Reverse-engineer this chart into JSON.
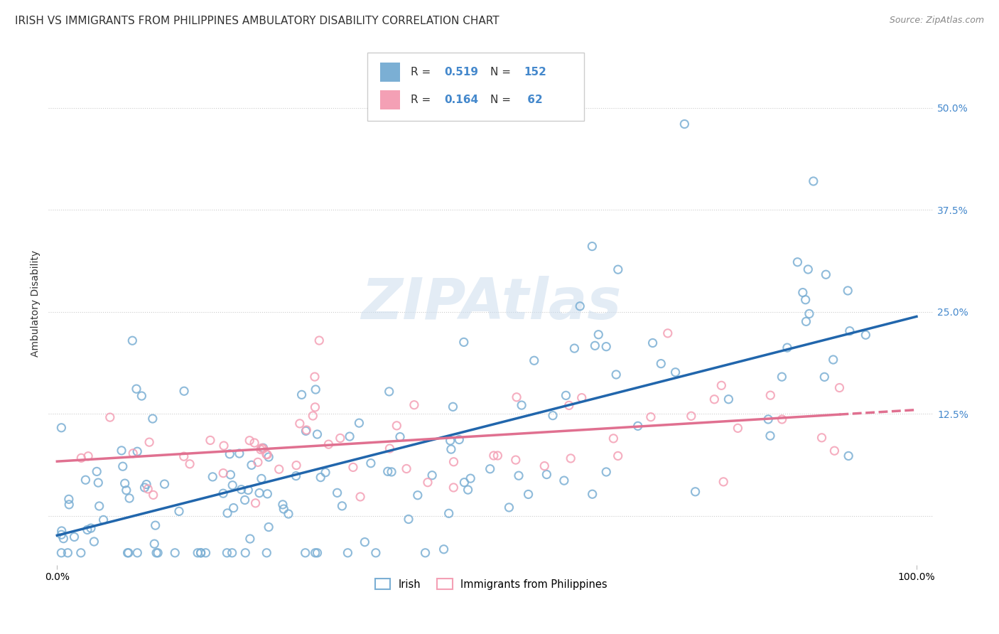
{
  "title": "IRISH VS IMMIGRANTS FROM PHILIPPINES AMBULATORY DISABILITY CORRELATION CHART",
  "source": "Source: ZipAtlas.com",
  "ylabel": "Ambulatory Disability",
  "irish_color": "#7bafd4",
  "irish_edge_color": "#7bafd4",
  "philippines_color": "#f4a0b5",
  "philippines_edge_color": "#f4a0b5",
  "irish_line_color": "#2166ac",
  "philippines_line_color": "#e07090",
  "R_irish": 0.519,
  "N_irish": 152,
  "R_philippines": 0.164,
  "N_philippines": 62,
  "legend_label_1": "Irish",
  "legend_label_2": "Immigrants from Philippines",
  "watermark": "ZIPAtlas",
  "background_color": "#ffffff",
  "grid_color": "#cccccc",
  "title_fontsize": 11,
  "axis_fontsize": 10,
  "tick_fontsize": 10,
  "right_tick_color": "#4488cc",
  "xlim_low": -0.01,
  "xlim_high": 1.02,
  "ylim_low": -0.06,
  "ylim_high": 0.58,
  "y_tick_vals": [
    0.0,
    0.125,
    0.25,
    0.375,
    0.5
  ],
  "y_tick_labels": [
    "",
    "12.5%",
    "25.0%",
    "37.5%",
    "50.0%"
  ]
}
